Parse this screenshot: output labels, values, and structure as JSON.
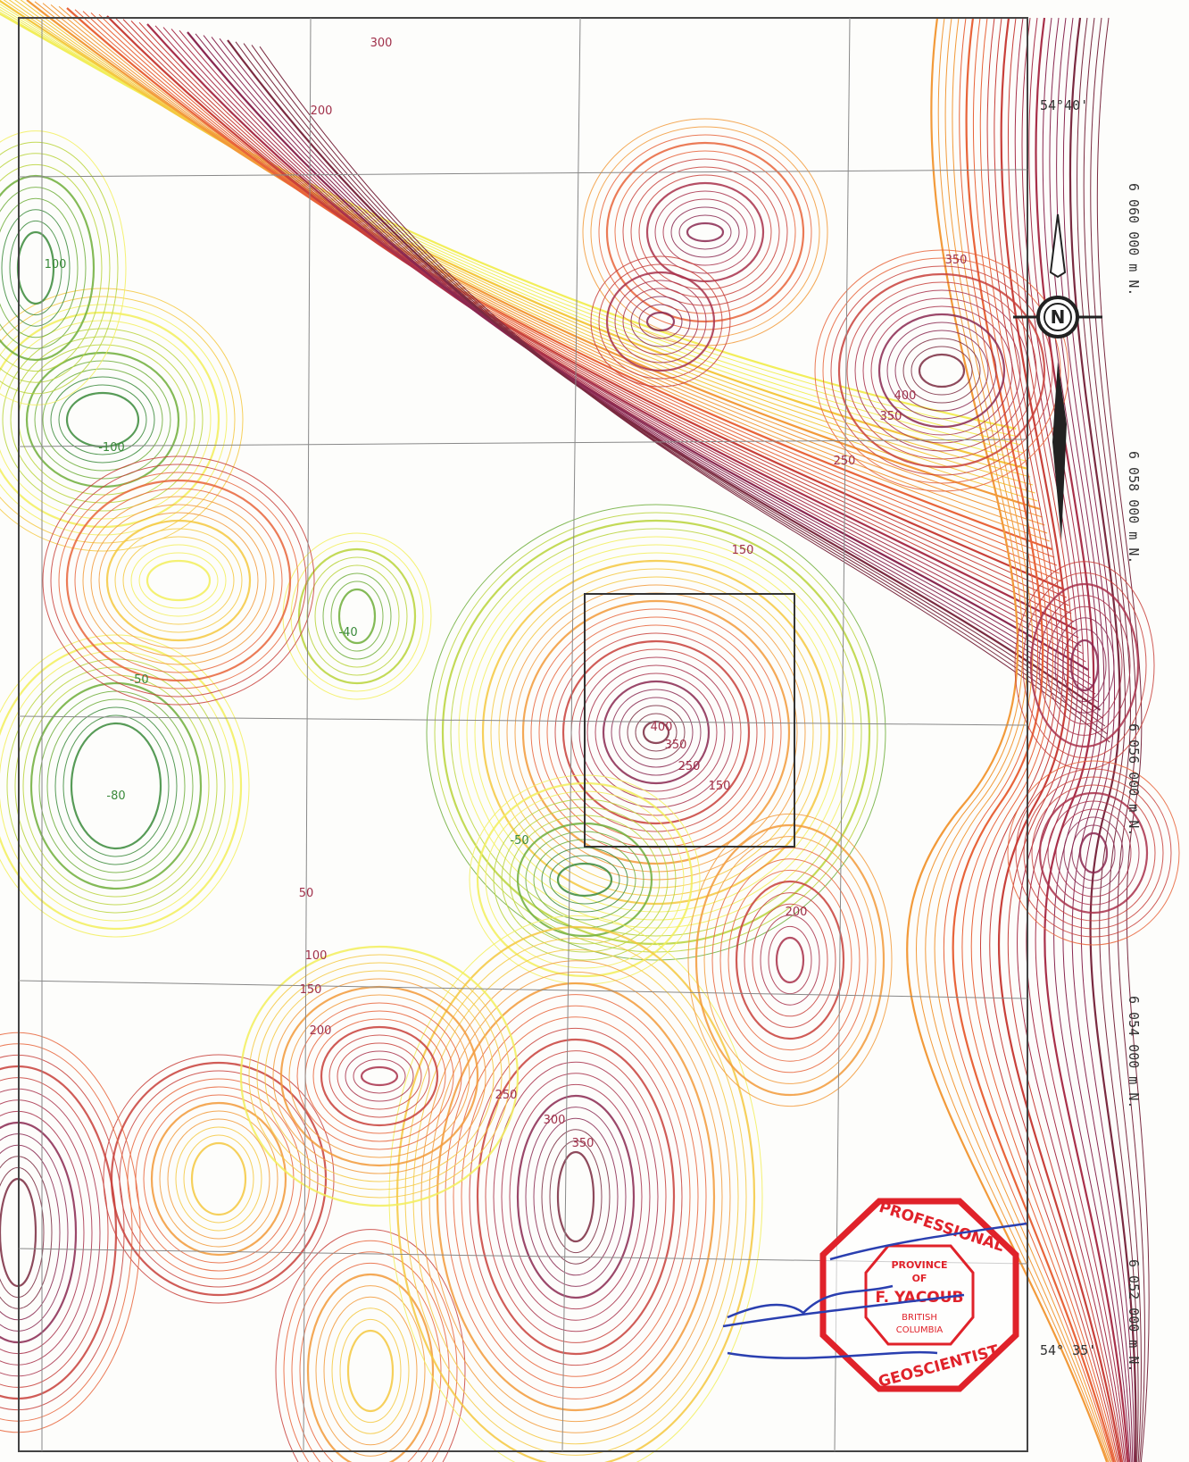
{
  "map": {
    "contour_labels": [
      "300",
      "200",
      "350",
      "400",
      "350",
      "250",
      "150",
      "-100",
      "100",
      "-40",
      "-50",
      "-80",
      "-50",
      "400",
      "350",
      "250",
      "150",
      "50",
      "100",
      "150",
      "200",
      "200",
      "250",
      "300",
      "350"
    ],
    "latitude_labels": [
      "54°40'",
      "54° 35'"
    ],
    "northing_labels": [
      "6 060 000 m N.",
      "6 058 000 m N.",
      "6 056 000 m N.",
      "6 054 000 m N.",
      "6 052 000 m N."
    ],
    "compass": "N",
    "stamp": {
      "top": "PROFESSIONAL",
      "province": "PROVINCE",
      "of": "OF",
      "name": "F. YACOUB",
      "british": "BRITISH",
      "columbia": "COLUMBIA",
      "bottom": "GEOSCIENTIST"
    }
  }
}
